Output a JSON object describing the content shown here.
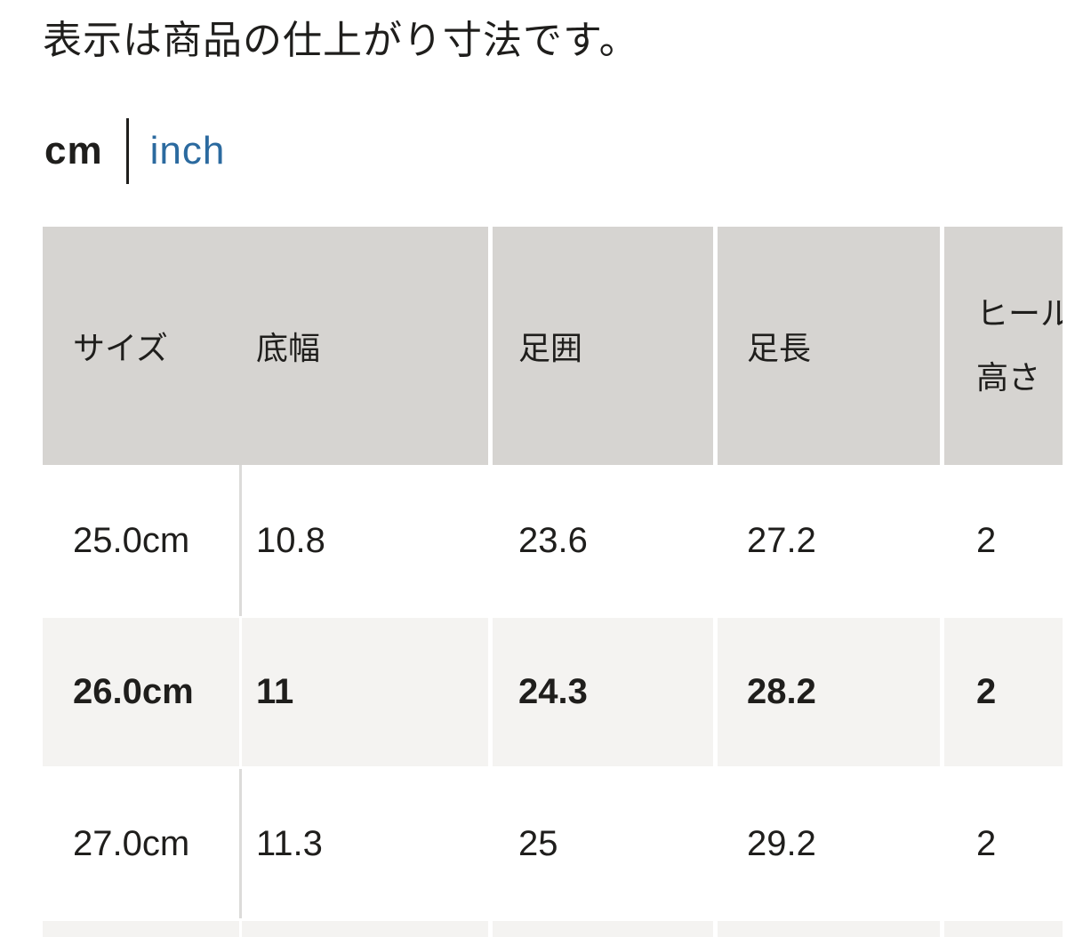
{
  "note": "表示は商品の仕上がり寸法です。",
  "unit_toggle": {
    "cm_label": "cm",
    "inch_label": "inch"
  },
  "size_chart": {
    "columns": {
      "size": "サイズ",
      "sole_width": "底幅",
      "foot_circumference": "足囲",
      "foot_length": "足長",
      "heel_height_line1": "ヒール",
      "heel_height_line2": "高さ"
    },
    "rows": [
      {
        "size": "25.0cm",
        "values": [
          "10.8",
          "23.6",
          "27.2",
          "2"
        ],
        "highlighted": false
      },
      {
        "size": "26.0cm",
        "values": [
          "11",
          "24.3",
          "28.2",
          "2"
        ],
        "highlighted": true
      },
      {
        "size": "27.0cm",
        "values": [
          "11.3",
          "25",
          "29.2",
          "2"
        ],
        "highlighted": false
      }
    ]
  },
  "colors": {
    "header_bg": "#d6d4d1",
    "highlight_bg": "#f4f3f1",
    "divider_light": "#dcdbd9",
    "text": "#1f1e1c",
    "link_blue": "#2b6a9f",
    "page_bg": "#ffffff"
  }
}
